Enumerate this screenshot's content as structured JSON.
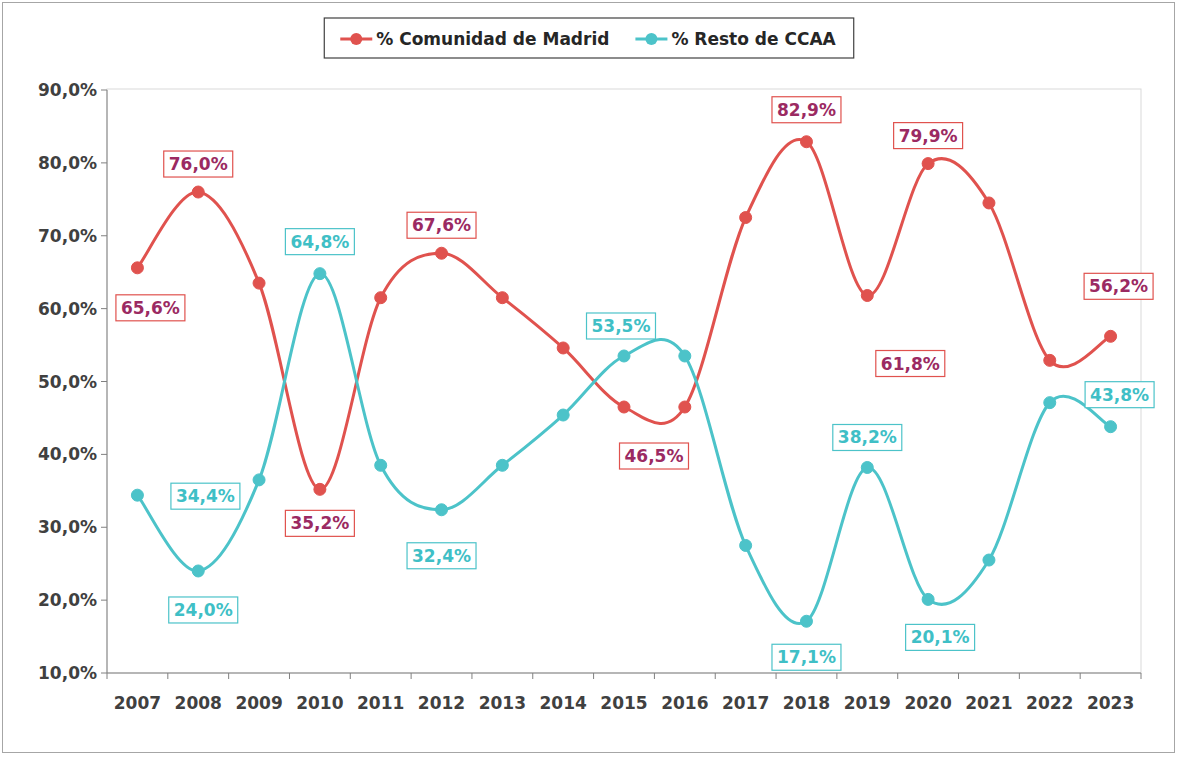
{
  "chart_data": {
    "type": "line",
    "categories": [
      "2007",
      "2008",
      "2009",
      "2010",
      "2011",
      "2012",
      "2013",
      "2014",
      "2015",
      "2016",
      "2017",
      "2018",
      "2019",
      "2020",
      "2021",
      "2022",
      "2023"
    ],
    "series": [
      {
        "name": "% Comunidad de Madrid",
        "color": "#e0524e",
        "marker": "circle",
        "line_style": "smooth",
        "values": [
          65.6,
          76.0,
          63.5,
          35.2,
          61.5,
          67.6,
          61.5,
          54.6,
          46.5,
          46.5,
          72.5,
          82.9,
          61.8,
          79.9,
          74.5,
          52.9,
          56.2
        ],
        "value_labels": [
          "65,6%",
          "76,0%",
          null,
          "35,2%",
          null,
          "67,6%",
          null,
          null,
          "46,5%",
          null,
          null,
          "82,9%",
          "61,8%",
          "79,9%",
          null,
          null,
          "56,2%"
        ]
      },
      {
        "name": "% Resto de CCAA",
        "color": "#4cc3c9",
        "marker": "circle",
        "line_style": "smooth",
        "values": [
          34.4,
          24.0,
          36.5,
          64.8,
          38.5,
          32.4,
          38.5,
          45.4,
          53.5,
          53.5,
          27.5,
          17.1,
          38.2,
          20.1,
          25.5,
          47.1,
          43.8
        ],
        "value_labels": [
          "34,4%",
          "24,0%",
          null,
          "64,8%",
          null,
          "32,4%",
          null,
          null,
          "53,5%",
          null,
          null,
          "17,1%",
          "38,2%",
          "20,1%",
          null,
          null,
          "43,8%"
        ]
      }
    ],
    "ylim": [
      10,
      90
    ],
    "yticks": [
      {
        "value": 10,
        "label": "10,0%"
      },
      {
        "value": 20,
        "label": "20,0%"
      },
      {
        "value": 30,
        "label": "30,0%"
      },
      {
        "value": 40,
        "label": "40,0%"
      },
      {
        "value": 50,
        "label": "50,0%"
      },
      {
        "value": 60,
        "label": "60,0%"
      },
      {
        "value": 70,
        "label": "70,0%"
      },
      {
        "value": 80,
        "label": "80,0%"
      },
      {
        "value": 90,
        "label": "90,0%"
      }
    ],
    "grid": false,
    "legend": "top",
    "data_labels": true
  }
}
